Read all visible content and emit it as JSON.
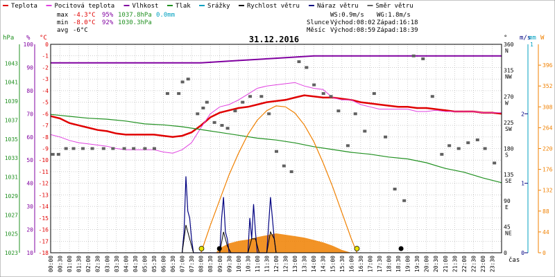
{
  "legend": [
    {
      "label": "Teplota",
      "color": "#e00000"
    },
    {
      "label": "Pocitová teplota",
      "color": "#e040e0"
    },
    {
      "label": "Vlhkost",
      "color": "#8000a0"
    },
    {
      "label": "Tlak",
      "color": "#209020"
    },
    {
      "label": "Srážky",
      "color": "#00a0c0"
    },
    {
      "label": "Rychlost větru",
      "color": "#000000"
    },
    {
      "label": "Náraz větru",
      "color": "#000080"
    },
    {
      "label": "Směr větru",
      "color": "#606060"
    }
  ],
  "stats": {
    "max_label": "max",
    "max_temp": "-4.3°C",
    "max_hum": "95%",
    "max_press": "1037.8hPa",
    "max_rain": "0.0mm",
    "min_label": "min",
    "min_temp": "-8.0°C",
    "min_hum": "92%",
    "min_press": "1030.3hPa",
    "avg_label": "avg",
    "avg_temp": "-6°C",
    "ws": "WS:0.9m/s",
    "wg": "WG:1.8m/s",
    "sun_label": "Slunce",
    "sun_rise": "Východ:08:02",
    "sun_set": "Západ:16:18",
    "moon_label": "Měsíc",
    "moon_rise": "Východ:08:59",
    "moon_set": "Západ:18:39"
  },
  "date": "31.12.2016",
  "axes": {
    "hpa_unit": "hPa",
    "hum_unit": "%",
    "temp_unit": "°C",
    "dir_unit": "°",
    "ms_unit": "m/s",
    "mm_unit": "mm",
    "w_unit": "W",
    "time_unit": "čas"
  },
  "colors": {
    "temp": "#e00000",
    "feels": "#e040e0",
    "hum": "#8000a0",
    "press": "#209020",
    "gust": "#000080",
    "wind": "#000000",
    "dir": "#606060",
    "rain": "#00a0c0",
    "solar_curve": "#f08000",
    "solar_fill": "#f08000",
    "marker": "#e8e000"
  },
  "chart_data": {
    "type": "line",
    "title": "31.12.2016",
    "x_range": [
      "00:00",
      "24:00"
    ],
    "x_ticks": [
      "00:00",
      "00:30",
      "01:00",
      "01:30",
      "02:00",
      "02:30",
      "03:00",
      "03:30",
      "04:00",
      "04:30",
      "05:00",
      "05:30",
      "06:00",
      "06:30",
      "07:00",
      "07:30",
      "08:00",
      "08:30",
      "09:00",
      "09:30",
      "10:00",
      "10:30",
      "11:00",
      "11:30",
      "12:00",
      "12:30",
      "13:00",
      "13:30",
      "14:00",
      "14:30",
      "15:00",
      "15:30",
      "16:00",
      "16:30",
      "17:00",
      "17:30",
      "18:00",
      "18:30",
      "19:00",
      "19:30",
      "20:00",
      "20:30",
      "21:00",
      "21:30",
      "22:00",
      "22:30",
      "23:00",
      "23:30"
    ],
    "temp_axis": {
      "min": -18,
      "max": 0,
      "ticks": [
        0,
        -1,
        -2,
        -3,
        -4,
        -5,
        -6,
        -7,
        -8,
        -9,
        -10,
        -11,
        -12,
        -13,
        -14,
        -15,
        -16,
        -17,
        -18
      ]
    },
    "hum_axis": {
      "min": 10,
      "max": 100,
      "ticks": [
        100,
        90,
        80,
        70,
        60,
        50,
        40,
        30,
        20,
        10
      ]
    },
    "press_axis": {
      "min": 1023,
      "max": 1045,
      "ticks": [
        1043,
        1041,
        1039,
        1037,
        1035,
        1033,
        1031,
        1029,
        1027,
        1025,
        1023
      ]
    },
    "dir_axis": {
      "min": 0,
      "max": 360,
      "ticks": [
        {
          "v": 360,
          "l": "N"
        },
        {
          "v": 315,
          "l": "NW"
        },
        {
          "v": 270,
          "l": "W"
        },
        {
          "v": 225,
          "l": "SW"
        },
        {
          "v": 180,
          "l": "S"
        },
        {
          "v": 135,
          "l": "SE"
        },
        {
          "v": 90,
          "l": "E"
        },
        {
          "v": 45,
          "l": "NE"
        },
        {
          "v": 0,
          "l": ""
        }
      ]
    },
    "wind_axis": {
      "min": 0,
      "max": 3,
      "ticks": [
        2,
        1,
        0
      ],
      "mm_top": 1
    },
    "solar_axis": {
      "min": 0,
      "max": 440,
      "ticks": [
        396,
        352,
        308,
        264,
        220,
        176,
        132,
        88,
        44,
        0
      ]
    },
    "series": [
      {
        "name": "Teplota",
        "axis": "temp",
        "x": [
          0,
          0.5,
          1,
          1.5,
          2,
          2.5,
          3,
          3.5,
          4,
          4.5,
          5,
          5.5,
          6,
          6.5,
          7,
          7.5,
          8,
          8.5,
          9,
          9.5,
          10,
          10.5,
          11,
          11.5,
          12,
          12.5,
          13,
          13.5,
          14,
          14.5,
          15,
          15.5,
          16,
          16.5,
          17,
          17.5,
          18,
          18.5,
          19,
          19.5,
          20,
          20.5,
          21,
          21.5,
          22,
          22.5,
          23,
          23.5,
          24
        ],
        "y": [
          -6.2,
          -6.4,
          -6.8,
          -7.0,
          -7.2,
          -7.4,
          -7.5,
          -7.7,
          -7.8,
          -7.8,
          -7.8,
          -7.8,
          -7.9,
          -8.0,
          -7.9,
          -7.6,
          -7.0,
          -6.3,
          -5.9,
          -5.7,
          -5.5,
          -5.4,
          -5.2,
          -5.0,
          -4.9,
          -4.8,
          -4.6,
          -4.4,
          -4.5,
          -4.6,
          -4.6,
          -4.7,
          -4.8,
          -5.0,
          -5.1,
          -5.2,
          -5.3,
          -5.4,
          -5.4,
          -5.5,
          -5.5,
          -5.6,
          -5.7,
          -5.8,
          -5.8,
          -5.8,
          -5.9,
          -5.9,
          -6.0
        ]
      },
      {
        "name": "Pocitová teplota",
        "axis": "temp",
        "x": [
          0,
          0.5,
          1,
          1.5,
          2,
          2.5,
          3,
          3.5,
          4,
          4.5,
          5,
          5.5,
          6,
          6.5,
          7,
          7.5,
          8,
          8.5,
          9,
          9.5,
          10,
          10.5,
          11,
          11.5,
          12,
          12.5,
          13,
          13.5,
          14,
          14.5,
          15,
          15.5,
          16,
          16.5,
          17,
          17.5,
          18,
          18.5,
          19,
          19.5,
          20,
          20.5,
          21,
          21.5,
          22,
          22.5,
          23,
          23.5,
          24
        ],
        "y": [
          -7.8,
          -8.0,
          -8.3,
          -8.5,
          -8.6,
          -8.7,
          -8.8,
          -9.0,
          -9.1,
          -9.1,
          -9.1,
          -9.1,
          -9.3,
          -9.4,
          -9.1,
          -8.5,
          -7.2,
          -6.0,
          -5.4,
          -5.2,
          -4.8,
          -4.3,
          -3.8,
          -3.6,
          -3.5,
          -3.4,
          -3.3,
          -3.6,
          -3.8,
          -3.9,
          -4.6,
          -4.8,
          -4.8,
          -5.2,
          -5.4,
          -5.6,
          -5.6,
          -5.6,
          -5.6,
          -5.8,
          -5.8,
          -5.7,
          -5.8,
          -5.8,
          -5.8,
          -5.8,
          -5.9,
          -5.9,
          -5.9
        ]
      },
      {
        "name": "Vlhkost",
        "axis": "hum",
        "x": [
          0,
          2,
          4,
          6,
          8,
          10,
          12,
          14,
          16,
          18,
          20,
          22,
          24
        ],
        "y": [
          92,
          92,
          92,
          92,
          92,
          93,
          94,
          95,
          95,
          95,
          95,
          95,
          95
        ]
      },
      {
        "name": "Tlak",
        "axis": "press",
        "x": [
          0,
          1,
          2,
          3,
          4,
          5,
          6,
          7,
          8,
          9,
          10,
          11,
          12,
          13,
          14,
          15,
          16,
          17,
          18,
          19,
          20,
          21,
          22,
          23,
          24
        ],
        "y": [
          1037.6,
          1037.4,
          1037.2,
          1037.1,
          1036.9,
          1036.6,
          1036.5,
          1036.3,
          1036.0,
          1035.7,
          1035.4,
          1035.1,
          1034.9,
          1034.6,
          1034.2,
          1033.9,
          1033.6,
          1033.4,
          1033.1,
          1032.9,
          1032.5,
          1031.9,
          1031.5,
          1030.9,
          1030.4
        ]
      },
      {
        "name": "Směr větru",
        "axis": "dir",
        "x": [
          0.1,
          0.4,
          0.8,
          1.2,
          1.7,
          2.2,
          2.8,
          3.3,
          3.9,
          4.4,
          5.0,
          5.5,
          6.2,
          6.8,
          7.0,
          7.3,
          7.8,
          8.1,
          8.3,
          8.7,
          9.1,
          9.4,
          9.8,
          10.2,
          10.6,
          11.2,
          11.6,
          12.0,
          12.4,
          12.8,
          13.2,
          13.6,
          14.0,
          14.5,
          14.9,
          15.3,
          15.8,
          16.2,
          16.7,
          17.2,
          17.8,
          18.3,
          18.8,
          19.3,
          19.8,
          20.3,
          20.8,
          21.2,
          21.7,
          22.2,
          22.7,
          23.1,
          23.6
        ],
        "y": [
          170,
          170,
          180,
          180,
          180,
          180,
          180,
          180,
          180,
          180,
          180,
          180,
          275,
          275,
          295,
          300,
          240,
          250,
          260,
          225,
          220,
          215,
          245,
          260,
          270,
          270,
          240,
          175,
          150,
          140,
          330,
          320,
          290,
          275,
          270,
          245,
          185,
          240,
          210,
          275,
          200,
          110,
          90,
          340,
          335,
          270,
          170,
          185,
          180,
          190,
          195,
          180,
          155
        ]
      },
      {
        "name": "Náraz větru",
        "axis": "wind",
        "x": [
          7.0,
          7.1,
          7.2,
          7.3,
          7.4,
          7.5,
          7.6,
          7.7,
          7.8,
          8.0,
          9.0,
          9.1,
          9.2,
          9.3,
          9.4,
          9.5,
          9.6,
          9.7,
          9.8,
          10.0,
          10.5,
          10.6,
          10.7,
          10.8,
          10.9,
          11.0,
          11.1,
          11.2,
          11.5,
          11.6,
          11.7,
          11.8,
          11.9,
          12.0
        ],
        "y": [
          0,
          0.3,
          1.1,
          0.6,
          0.5,
          0.2,
          0,
          0,
          0,
          0,
          0,
          0.5,
          0.8,
          0.3,
          0.2,
          0,
          0,
          0,
          0,
          0,
          0,
          0.5,
          0.2,
          0.7,
          0.3,
          0,
          0,
          0,
          0,
          0.4,
          0.8,
          0.5,
          0.2,
          0
        ]
      },
      {
        "name": "Rychlost větru",
        "axis": "wind",
        "x": [
          7.0,
          7.2,
          7.4,
          7.6,
          8.0,
          9.0,
          9.2,
          9.4,
          9.6,
          10.0,
          10.5,
          10.7,
          10.9,
          11.1,
          11.5,
          11.7,
          11.9,
          12.0
        ],
        "y": [
          0,
          0.4,
          0.2,
          0,
          0,
          0,
          0.3,
          0.1,
          0,
          0,
          0,
          0.2,
          0.2,
          0,
          0,
          0.3,
          0.2,
          0
        ]
      },
      {
        "name": "Solar max",
        "axis": "solar",
        "x": [
          8.0,
          8.5,
          9.0,
          9.5,
          10.0,
          10.5,
          11.0,
          11.5,
          12.0,
          12.5,
          13.0,
          13.5,
          14.0,
          14.5,
          15.0,
          15.5,
          16.0,
          16.3
        ],
        "y": [
          0,
          58,
          112,
          165,
          210,
          250,
          280,
          300,
          310,
          308,
          295,
          270,
          235,
          190,
          140,
          85,
          30,
          0
        ]
      },
      {
        "name": "Solar",
        "axis": "solar",
        "x": [
          8.8,
          9.0,
          9.5,
          10.0,
          10.5,
          11.0,
          11.5,
          12.0,
          12.5,
          13.0,
          13.5,
          14.0,
          14.5,
          15.0,
          15.5,
          16.0
        ],
        "y": [
          0,
          10,
          20,
          25,
          28,
          33,
          37,
          41,
          38,
          35,
          32,
          27,
          22,
          15,
          6,
          0
        ]
      }
    ],
    "markers": [
      {
        "kind": "sun",
        "x": 8.03
      },
      {
        "kind": "sun",
        "x": 16.3
      },
      {
        "kind": "moon",
        "x": 8.98
      },
      {
        "kind": "moon",
        "x": 18.65
      }
    ]
  }
}
